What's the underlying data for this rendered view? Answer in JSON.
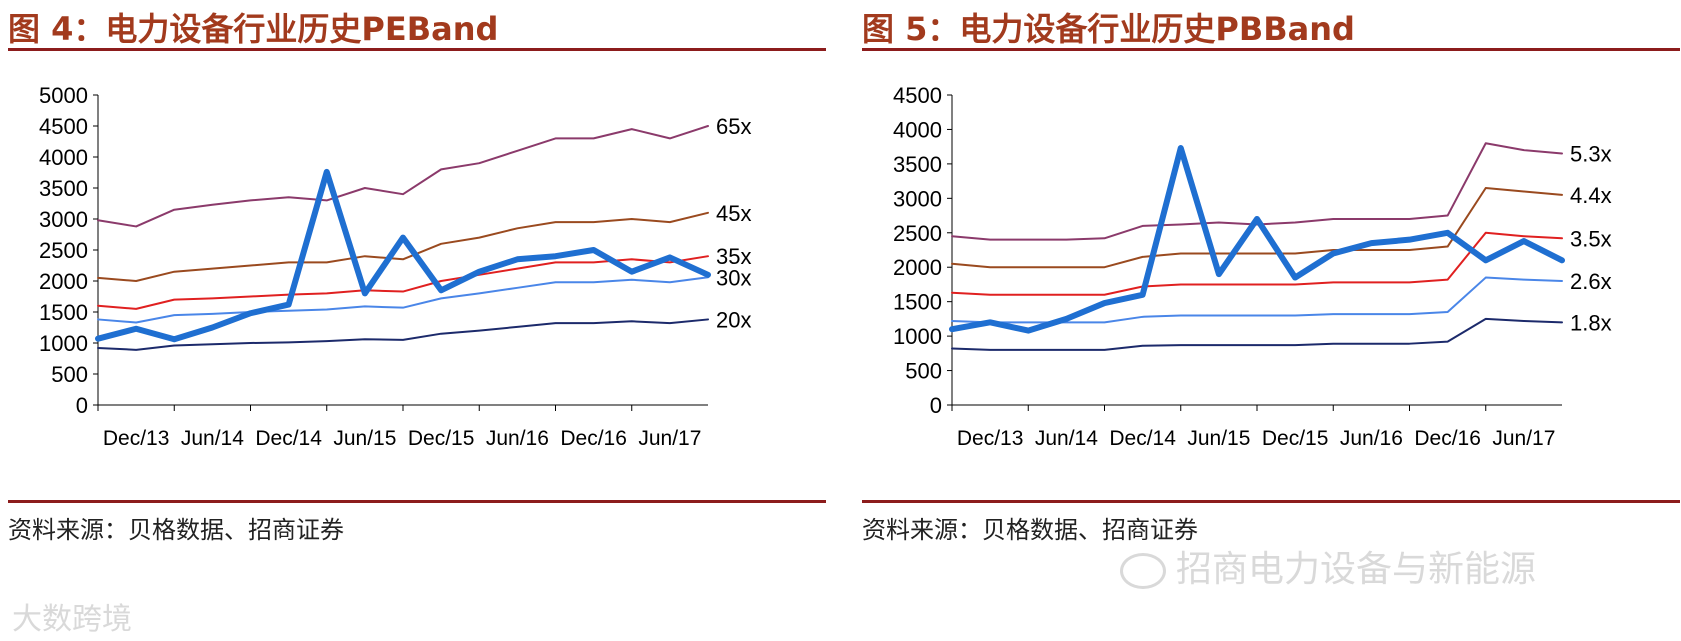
{
  "colors": {
    "title": "#a23a1d",
    "rule": "#8c1c1c",
    "index_line": "#1f6fd1",
    "watermark": "#d9d9d9"
  },
  "watermark_primary": "招商电力设备与新能源",
  "watermark_secondary": "大数跨境",
  "chart_data": [
    {
      "type": "line",
      "title": "图 4：电力设备行业历史PEBand",
      "source": "资料来源：贝格数据、招商证券",
      "categories": [
        "Dec/13",
        "Jun/14",
        "Dec/14",
        "Jun/15",
        "Dec/15",
        "Jun/16",
        "Dec/16",
        "Jun/17"
      ],
      "x": [
        "Dec/13",
        "Mar/14",
        "Jun/14",
        "Sep/14",
        "Dec/14",
        "Mar/15",
        "Jun/15",
        "Sep/15",
        "Dec/15",
        "Mar/16",
        "Jun/16",
        "Sep/16",
        "Dec/16",
        "Mar/17",
        "Jun/17",
        "Sep/17",
        "Nov/17"
      ],
      "ylim": [
        0,
        5000
      ],
      "yticks": [
        "0",
        "500",
        "1000",
        "1500",
        "2000",
        "2500",
        "3000",
        "3500",
        "4000",
        "4500",
        "5000"
      ],
      "grid": false,
      "series": [
        {
          "name": "65x",
          "color": "#8b3a6b",
          "width": 2,
          "values": [
            2980,
            2880,
            3150,
            3230,
            3300,
            3350,
            3300,
            3500,
            3400,
            3800,
            3900,
            4100,
            4300,
            4300,
            4450,
            4300,
            4500
          ]
        },
        {
          "name": "45x",
          "color": "#9a4a1f",
          "width": 2,
          "values": [
            2050,
            2000,
            2150,
            2200,
            2250,
            2300,
            2300,
            2400,
            2350,
            2600,
            2700,
            2850,
            2950,
            2950,
            3000,
            2950,
            3100
          ]
        },
        {
          "name": "35x",
          "color": "#e02020",
          "width": 2,
          "values": [
            1600,
            1550,
            1700,
            1720,
            1750,
            1780,
            1800,
            1850,
            1830,
            2000,
            2100,
            2200,
            2300,
            2300,
            2350,
            2300,
            2400
          ]
        },
        {
          "name": "30x",
          "color": "#4a86e8",
          "width": 2,
          "values": [
            1380,
            1330,
            1450,
            1470,
            1500,
            1520,
            1540,
            1590,
            1570,
            1720,
            1800,
            1890,
            1980,
            1980,
            2020,
            1980,
            2060
          ]
        },
        {
          "name": "20x",
          "color": "#1c2a6b",
          "width": 2,
          "values": [
            920,
            890,
            960,
            980,
            1000,
            1010,
            1030,
            1060,
            1050,
            1150,
            1200,
            1260,
            1320,
            1320,
            1350,
            1320,
            1380
          ]
        },
        {
          "name": "",
          "color": "#1f6fd1",
          "width": 6,
          "values": [
            1070,
            1230,
            1060,
            1250,
            1480,
            1620,
            3760,
            1800,
            2700,
            1850,
            2150,
            2350,
            2400,
            2500,
            2150,
            2380,
            2100
          ]
        }
      ]
    },
    {
      "type": "line",
      "title": "图 5：电力设备行业历史PBBand",
      "source": "资料来源：贝格数据、招商证券",
      "categories": [
        "Dec/13",
        "Jun/14",
        "Dec/14",
        "Jun/15",
        "Dec/15",
        "Jun/16",
        "Dec/16",
        "Jun/17"
      ],
      "x": [
        "Dec/13",
        "Mar/14",
        "Jun/14",
        "Sep/14",
        "Dec/14",
        "Mar/15",
        "Jun/15",
        "Sep/15",
        "Dec/15",
        "Mar/16",
        "Jun/16",
        "Sep/16",
        "Dec/16",
        "Mar/17",
        "Jun/17",
        "Sep/17",
        "Nov/17"
      ],
      "ylim": [
        0,
        4500
      ],
      "yticks": [
        "0",
        "500",
        "1000",
        "1500",
        "2000",
        "2500",
        "3000",
        "3500",
        "4000",
        "4500"
      ],
      "grid": false,
      "series": [
        {
          "name": "5.3x",
          "color": "#8b3a6b",
          "width": 2,
          "values": [
            2450,
            2400,
            2400,
            2400,
            2420,
            2600,
            2620,
            2650,
            2620,
            2650,
            2700,
            2700,
            2700,
            2750,
            3800,
            3700,
            3650
          ]
        },
        {
          "name": "4.4x",
          "color": "#9a4a1f",
          "width": 2,
          "values": [
            2050,
            2000,
            2000,
            2000,
            2000,
            2150,
            2200,
            2200,
            2200,
            2200,
            2250,
            2250,
            2250,
            2300,
            3150,
            3100,
            3050
          ]
        },
        {
          "name": "3.5x",
          "color": "#e02020",
          "width": 2,
          "values": [
            1630,
            1600,
            1600,
            1600,
            1600,
            1720,
            1750,
            1750,
            1750,
            1750,
            1780,
            1780,
            1780,
            1820,
            2500,
            2450,
            2420
          ]
        },
        {
          "name": "2.6x",
          "color": "#4a86e8",
          "width": 2,
          "values": [
            1220,
            1200,
            1200,
            1200,
            1200,
            1280,
            1300,
            1300,
            1300,
            1300,
            1320,
            1320,
            1320,
            1350,
            1850,
            1820,
            1800
          ]
        },
        {
          "name": "1.8x",
          "color": "#1c2a6b",
          "width": 2,
          "values": [
            820,
            800,
            800,
            800,
            800,
            860,
            870,
            870,
            870,
            870,
            890,
            890,
            890,
            920,
            1250,
            1220,
            1200
          ]
        },
        {
          "name": "",
          "color": "#1f6fd1",
          "width": 6,
          "values": [
            1100,
            1200,
            1080,
            1250,
            1480,
            1600,
            3730,
            1900,
            2700,
            1850,
            2200,
            2350,
            2400,
            2500,
            2100,
            2380,
            2100
          ]
        }
      ]
    }
  ]
}
